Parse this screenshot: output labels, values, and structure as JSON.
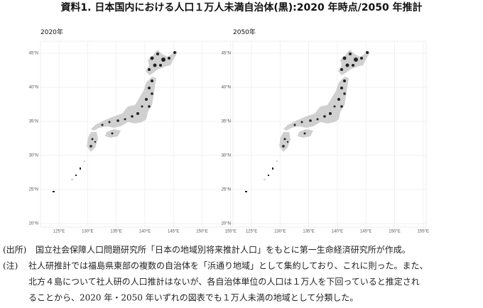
{
  "title": "資料1. 日本国内における人口１万人未満自治体(黒):2020 年時点/2050 年推計",
  "panels": [
    {
      "title": "2020年",
      "yticks": [
        "45°N",
        "40°N",
        "35°N",
        "30°N",
        "25°N",
        "20°N"
      ],
      "xticks": [
        "125°E",
        "130°E",
        "135°E",
        "140°E",
        "145°E",
        "150°E",
        "155°E"
      ]
    },
    {
      "title": "2050年",
      "yticks": [
        "45°N",
        "40°N",
        "35°N",
        "30°N",
        "25°N",
        "20°N"
      ],
      "xticks": [
        "125°E",
        "130°E",
        "135°E",
        "140°E",
        "145°E",
        "150°E",
        "155°E"
      ]
    }
  ],
  "notes": [
    {
      "label": "(出所)",
      "text": "国立社会保障人口問題研究所「日本の地域別将来推計人口」をもとに第一生命経済研究所が作成。"
    },
    {
      "label": "(注)",
      "text": "社人研推計では福島県東部の複数の自治体を「浜通り地域」として集約しており、これに則った。また、"
    },
    {
      "label": null,
      "text": "北方４島について社人研の人口推計はないが、各自治体単位の人口は１万人を下回っていると推定され"
    },
    {
      "label": null,
      "text": "ることから、2020 年・2050 年いずれの図表でも１万人未満の地域として分類した。"
    }
  ]
}
